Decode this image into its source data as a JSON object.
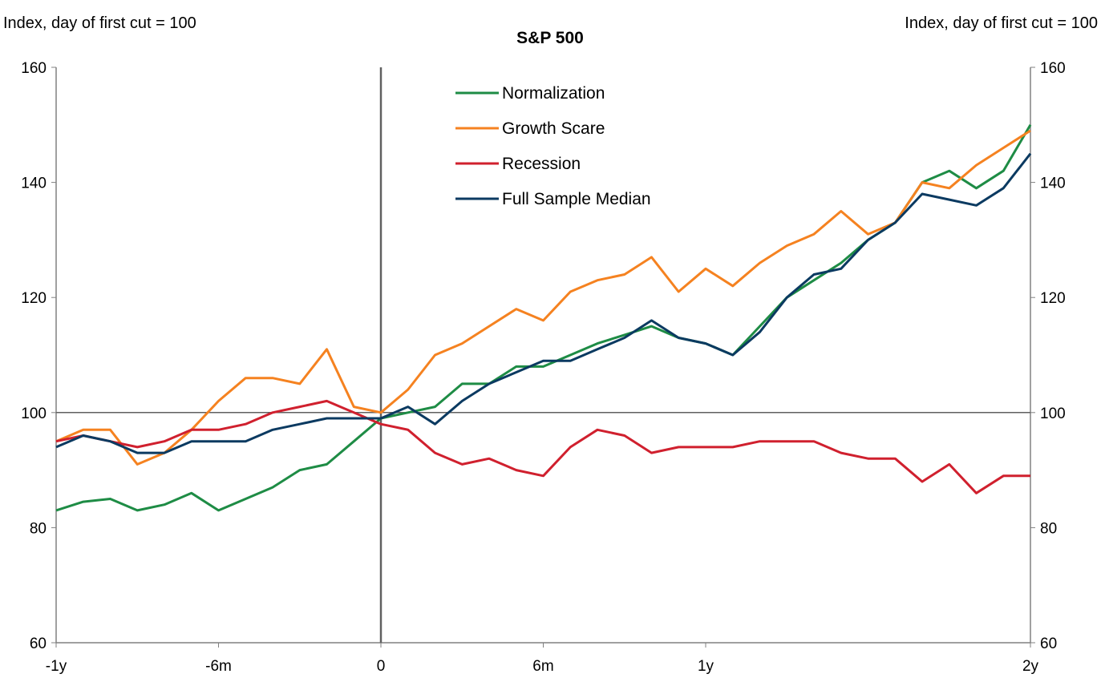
{
  "chart_data": {
    "type": "line",
    "title": "S&P 500",
    "ylabel_left": "Index, day of first cut = 100",
    "ylabel_right": "Index, day of first cut = 100",
    "x_unit": "months relative to first cut",
    "xlim": [
      -12,
      24
    ],
    "ylim": [
      60,
      160
    ],
    "y_ticks": [
      60,
      80,
      100,
      120,
      140,
      160
    ],
    "x_ticks": [
      {
        "value": -12,
        "label": "-1y"
      },
      {
        "value": -6,
        "label": "-6m"
      },
      {
        "value": 0,
        "label": "0"
      },
      {
        "value": 6,
        "label": "6m"
      },
      {
        "value": 12,
        "label": "1y"
      },
      {
        "value": 24,
        "label": "2y"
      }
    ],
    "reference_lines": {
      "vertical_x": 0,
      "horizontal_y": 100
    },
    "grid": false,
    "legend_position": "top-center",
    "x": [
      -12,
      -11,
      -10,
      -9,
      -8,
      -7,
      -6,
      -5,
      -4,
      -3,
      -2,
      -1,
      0,
      1,
      2,
      3,
      4,
      5,
      6,
      7,
      8,
      9,
      10,
      11,
      12,
      13,
      14,
      15,
      16,
      17,
      18,
      19,
      20,
      21,
      22,
      23,
      24
    ],
    "series": [
      {
        "name": "Normalization",
        "color": "#1e8c45",
        "values": [
          83,
          84.5,
          85,
          83,
          84,
          86,
          83,
          85,
          87,
          90,
          91,
          95,
          99,
          100,
          101,
          105,
          105,
          108,
          108,
          110,
          112,
          113.5,
          115,
          113,
          112,
          110,
          115,
          120,
          123,
          126,
          130,
          133,
          140,
          142,
          139,
          142,
          150
        ]
      },
      {
        "name": "Growth Scare",
        "color": "#f58220",
        "values": [
          95,
          97,
          97,
          91,
          93,
          97,
          102,
          106,
          106,
          105,
          111,
          101,
          100,
          104,
          110,
          112,
          115,
          118,
          116,
          121,
          123,
          124,
          127,
          121,
          125,
          122,
          126,
          129,
          131,
          135,
          131,
          133,
          140,
          139,
          143,
          146,
          149
        ]
      },
      {
        "name": "Recession",
        "color": "#d0202e",
        "values": [
          95,
          96,
          95,
          94,
          95,
          97,
          97,
          98,
          100,
          101,
          102,
          100,
          98,
          97,
          93,
          91,
          92,
          90,
          89,
          94,
          97,
          96,
          93,
          94,
          94,
          94,
          95,
          95,
          95,
          93,
          92,
          92,
          88,
          91,
          86,
          89,
          89
        ]
      },
      {
        "name": "Full Sample Median",
        "color": "#0b3a61",
        "values": [
          94,
          96,
          95,
          93,
          93,
          95,
          95,
          95,
          97,
          98,
          99,
          99,
          99,
          101,
          98,
          102,
          105,
          107,
          109,
          109,
          111,
          113,
          116,
          113,
          112,
          110,
          114,
          120,
          124,
          125,
          130,
          133,
          138,
          137,
          136,
          139,
          145
        ]
      }
    ]
  }
}
